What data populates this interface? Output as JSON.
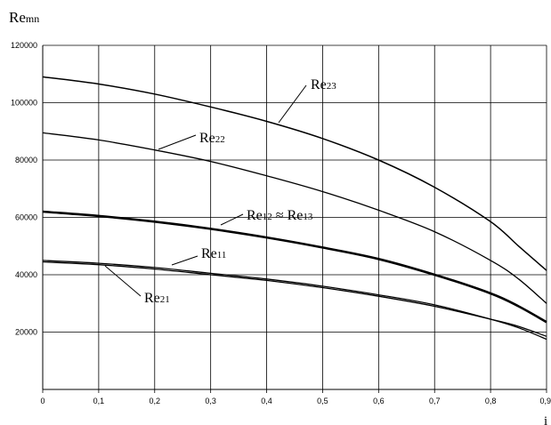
{
  "chart_data": {
    "type": "line",
    "ylabel": {
      "main": "Re",
      "sub": "mn"
    },
    "xlabel": "i",
    "xlim": [
      0,
      0.9
    ],
    "ylim": [
      0,
      120000
    ],
    "grid": true,
    "x_ticks": [
      "0",
      "0,1",
      "0,2",
      "0,3",
      "0,4",
      "0,5",
      "0,6",
      "0,7",
      "0,8",
      "0,9"
    ],
    "y_ticks": [
      "20000",
      "40000",
      "60000",
      "80000",
      "100000",
      "120000"
    ],
    "x_tick_values": [
      0,
      0.1,
      0.2,
      0.3,
      0.4,
      0.5,
      0.6,
      0.7,
      0.8,
      0.9
    ],
    "y_tick_values": [
      20000,
      40000,
      60000,
      80000,
      100000,
      120000
    ],
    "series": [
      {
        "id": "re23",
        "x": [
          0,
          0.1,
          0.2,
          0.3,
          0.4,
          0.5,
          0.6,
          0.7,
          0.8,
          0.85,
          0.9
        ],
        "y": [
          109000,
          106500,
          103000,
          98500,
          93500,
          87500,
          80000,
          70500,
          58500,
          50000,
          41500
        ]
      },
      {
        "id": "re22",
        "x": [
          0,
          0.1,
          0.2,
          0.3,
          0.4,
          0.5,
          0.6,
          0.7,
          0.8,
          0.85,
          0.9
        ],
        "y": [
          89500,
          87000,
          83500,
          79500,
          74500,
          69000,
          62500,
          55000,
          45000,
          38500,
          30000
        ]
      },
      {
        "id": "re12",
        "x": [
          0,
          0.1,
          0.2,
          0.3,
          0.4,
          0.5,
          0.6,
          0.7,
          0.8,
          0.85,
          0.9
        ],
        "y": [
          62000,
          60500,
          58500,
          56000,
          53000,
          49500,
          45500,
          40000,
          33500,
          29000,
          23500
        ]
      },
      {
        "id": "re11",
        "x": [
          0,
          0.1,
          0.2,
          0.3,
          0.4,
          0.5,
          0.6,
          0.7,
          0.8,
          0.85,
          0.9
        ],
        "y": [
          45000,
          44000,
          42500,
          40500,
          38500,
          36000,
          33000,
          29500,
          24500,
          21500,
          17500
        ]
      },
      {
        "id": "re21",
        "x": [
          0,
          0.1,
          0.2,
          0.3,
          0.4,
          0.5,
          0.6,
          0.7,
          0.8,
          0.85,
          0.9
        ],
        "y": [
          44500,
          43500,
          42000,
          40000,
          38000,
          35500,
          32500,
          29000,
          24500,
          22000,
          18500
        ]
      }
    ],
    "annotations": [
      {
        "for": "re23",
        "main": "Re",
        "sub": "23"
      },
      {
        "for": "re22",
        "main": "Re",
        "sub": "22"
      },
      {
        "for": "re12",
        "main": "Re",
        "sub": "12",
        "mid": " ≈ ",
        "main2": "Re",
        "sub2": "13"
      },
      {
        "for": "re11",
        "main": "Re",
        "sub": "11"
      },
      {
        "for": "re21",
        "main": "Re",
        "sub": "21"
      }
    ]
  }
}
